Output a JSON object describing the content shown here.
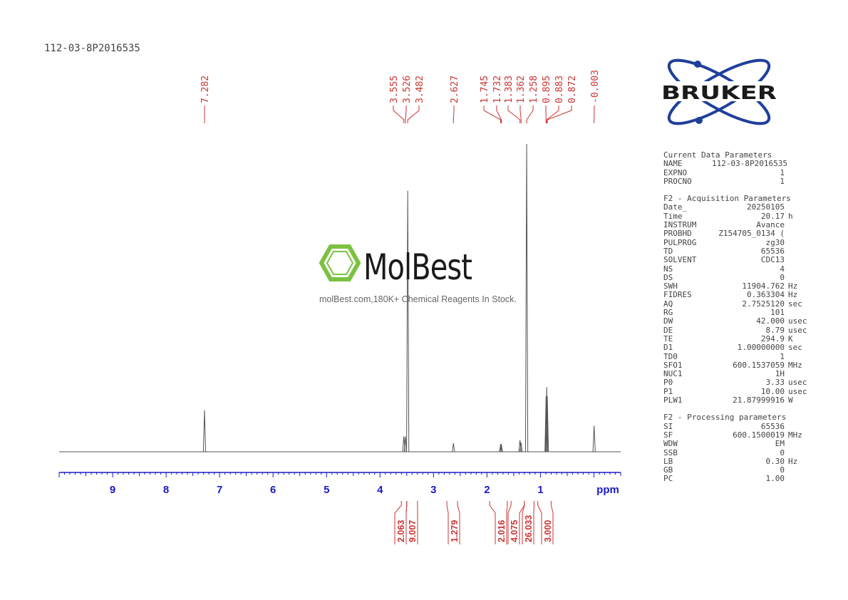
{
  "sample_id": "112-03-8P2016535",
  "brand": "BRUKER",
  "watermark": {
    "name": "MolBest",
    "tagline": "molBest.com,180K+ Chemical Reagents In Stock."
  },
  "chart_data": {
    "type": "line",
    "title": "",
    "xlabel": "ppm",
    "ylabel": "",
    "x_reversed": true,
    "xlim": [
      10.0,
      -0.5
    ],
    "ylim": [
      0,
      100
    ],
    "xticks": [
      9,
      8,
      7,
      6,
      5,
      4,
      3,
      2,
      1
    ],
    "xtick_labels": [
      "9",
      "8",
      "7",
      "6",
      "5",
      "4",
      "3",
      "2",
      "1"
    ],
    "grid": false,
    "peaks": [
      {
        "ppm": 7.282,
        "height": 13.5
      },
      {
        "ppm": 3.555,
        "height": 5.0
      },
      {
        "ppm": 3.526,
        "height": 5.0
      },
      {
        "ppm": 3.482,
        "height": 84.8
      },
      {
        "ppm": 2.627,
        "height": 2.8
      },
      {
        "ppm": 1.745,
        "height": 2.5
      },
      {
        "ppm": 1.732,
        "height": 2.5
      },
      {
        "ppm": 1.383,
        "height": 3.8
      },
      {
        "ppm": 1.362,
        "height": 3.0
      },
      {
        "ppm": 1.258,
        "height": 100
      },
      {
        "ppm": 0.895,
        "height": 18.0
      },
      {
        "ppm": 0.883,
        "height": 21.0
      },
      {
        "ppm": 0.872,
        "height": 18.0
      },
      {
        "ppm": -0.003,
        "height": 8.5
      }
    ],
    "peak_labels": [
      "7.282",
      "3.555",
      "3.526",
      "3.482",
      "2.627",
      "1.745",
      "1.732",
      "1.383",
      "1.362",
      "1.258",
      "0.895",
      "0.883",
      "0.872",
      "-0.003"
    ],
    "integrals": [
      {
        "from": 3.6,
        "to": 3.5,
        "value": "2.063"
      },
      {
        "from": 3.5,
        "to": 3.3,
        "value": "9.007"
      },
      {
        "from": 2.75,
        "to": 2.55,
        "value": "1.279"
      },
      {
        "from": 1.95,
        "to": 1.62,
        "value": "2.016"
      },
      {
        "from": 1.55,
        "to": 1.3,
        "value": "4.075"
      },
      {
        "from": 1.3,
        "to": 1.12,
        "value": "26.033"
      },
      {
        "from": 1.05,
        "to": 0.8,
        "value": "3.000"
      }
    ]
  },
  "params": {
    "sections": [
      {
        "title": "Current Data Parameters",
        "rows": [
          {
            "k": "NAME",
            "v": "112-03-8P2016535",
            "u": ""
          },
          {
            "k": "EXPNO",
            "v": "1",
            "u": ""
          },
          {
            "k": "PROCNO",
            "v": "1",
            "u": ""
          }
        ]
      },
      {
        "title": "F2 - Acquisition Parameters",
        "rows": [
          {
            "k": "Date_",
            "v": "20250105",
            "u": ""
          },
          {
            "k": "Time",
            "v": "20.17",
            "u": "h"
          },
          {
            "k": "INSTRUM",
            "v": "Avance",
            "u": ""
          },
          {
            "k": "PROBHD",
            "v": "Z154705_0134 (",
            "u": ""
          },
          {
            "k": "PULPROG",
            "v": "zg30",
            "u": ""
          },
          {
            "k": "TD",
            "v": "65536",
            "u": ""
          },
          {
            "k": "SOLVENT",
            "v": "CDC13",
            "u": ""
          },
          {
            "k": "NS",
            "v": "4",
            "u": ""
          },
          {
            "k": "DS",
            "v": "0",
            "u": ""
          },
          {
            "k": "SWH",
            "v": "11904.762",
            "u": "Hz"
          },
          {
            "k": "FIDRES",
            "v": "0.363304",
            "u": "Hz"
          },
          {
            "k": "AQ",
            "v": "2.7525120",
            "u": "sec"
          },
          {
            "k": "RG",
            "v": "101",
            "u": ""
          },
          {
            "k": "DW",
            "v": "42.000",
            "u": "usec"
          },
          {
            "k": "DE",
            "v": "8.79",
            "u": "usec"
          },
          {
            "k": "TE",
            "v": "294.9",
            "u": "K"
          },
          {
            "k": "D1",
            "v": "1.00000000",
            "u": "sec"
          },
          {
            "k": "TD0",
            "v": "1",
            "u": ""
          },
          {
            "k": "SFO1",
            "v": "600.1537059",
            "u": "MHz"
          },
          {
            "k": "NUC1",
            "v": "1H",
            "u": ""
          },
          {
            "k": "P0",
            "v": "3.33",
            "u": "usec"
          },
          {
            "k": "P1",
            "v": "10.00",
            "u": "usec"
          },
          {
            "k": "PLW1",
            "v": "21.87999916",
            "u": "W"
          }
        ]
      },
      {
        "title": "F2 - Processing parameters",
        "rows": [
          {
            "k": "SI",
            "v": "65536",
            "u": ""
          },
          {
            "k": "SF",
            "v": "600.1500019",
            "u": "MHz"
          },
          {
            "k": "WDW",
            "v": "EM",
            "u": ""
          },
          {
            "k": "SSB",
            "v": "0",
            "u": ""
          },
          {
            "k": "LB",
            "v": "0.30",
            "u": "Hz"
          },
          {
            "k": "GB",
            "v": "0",
            "u": ""
          },
          {
            "k": "PC",
            "v": "1.00",
            "u": ""
          }
        ]
      }
    ]
  },
  "colors": {
    "peak_label": "#cc3333",
    "axis": "#1a1acc",
    "spectrum": "#555555",
    "logo_blue": "#1f3f9a",
    "watermark_green": "#7cc242"
  }
}
